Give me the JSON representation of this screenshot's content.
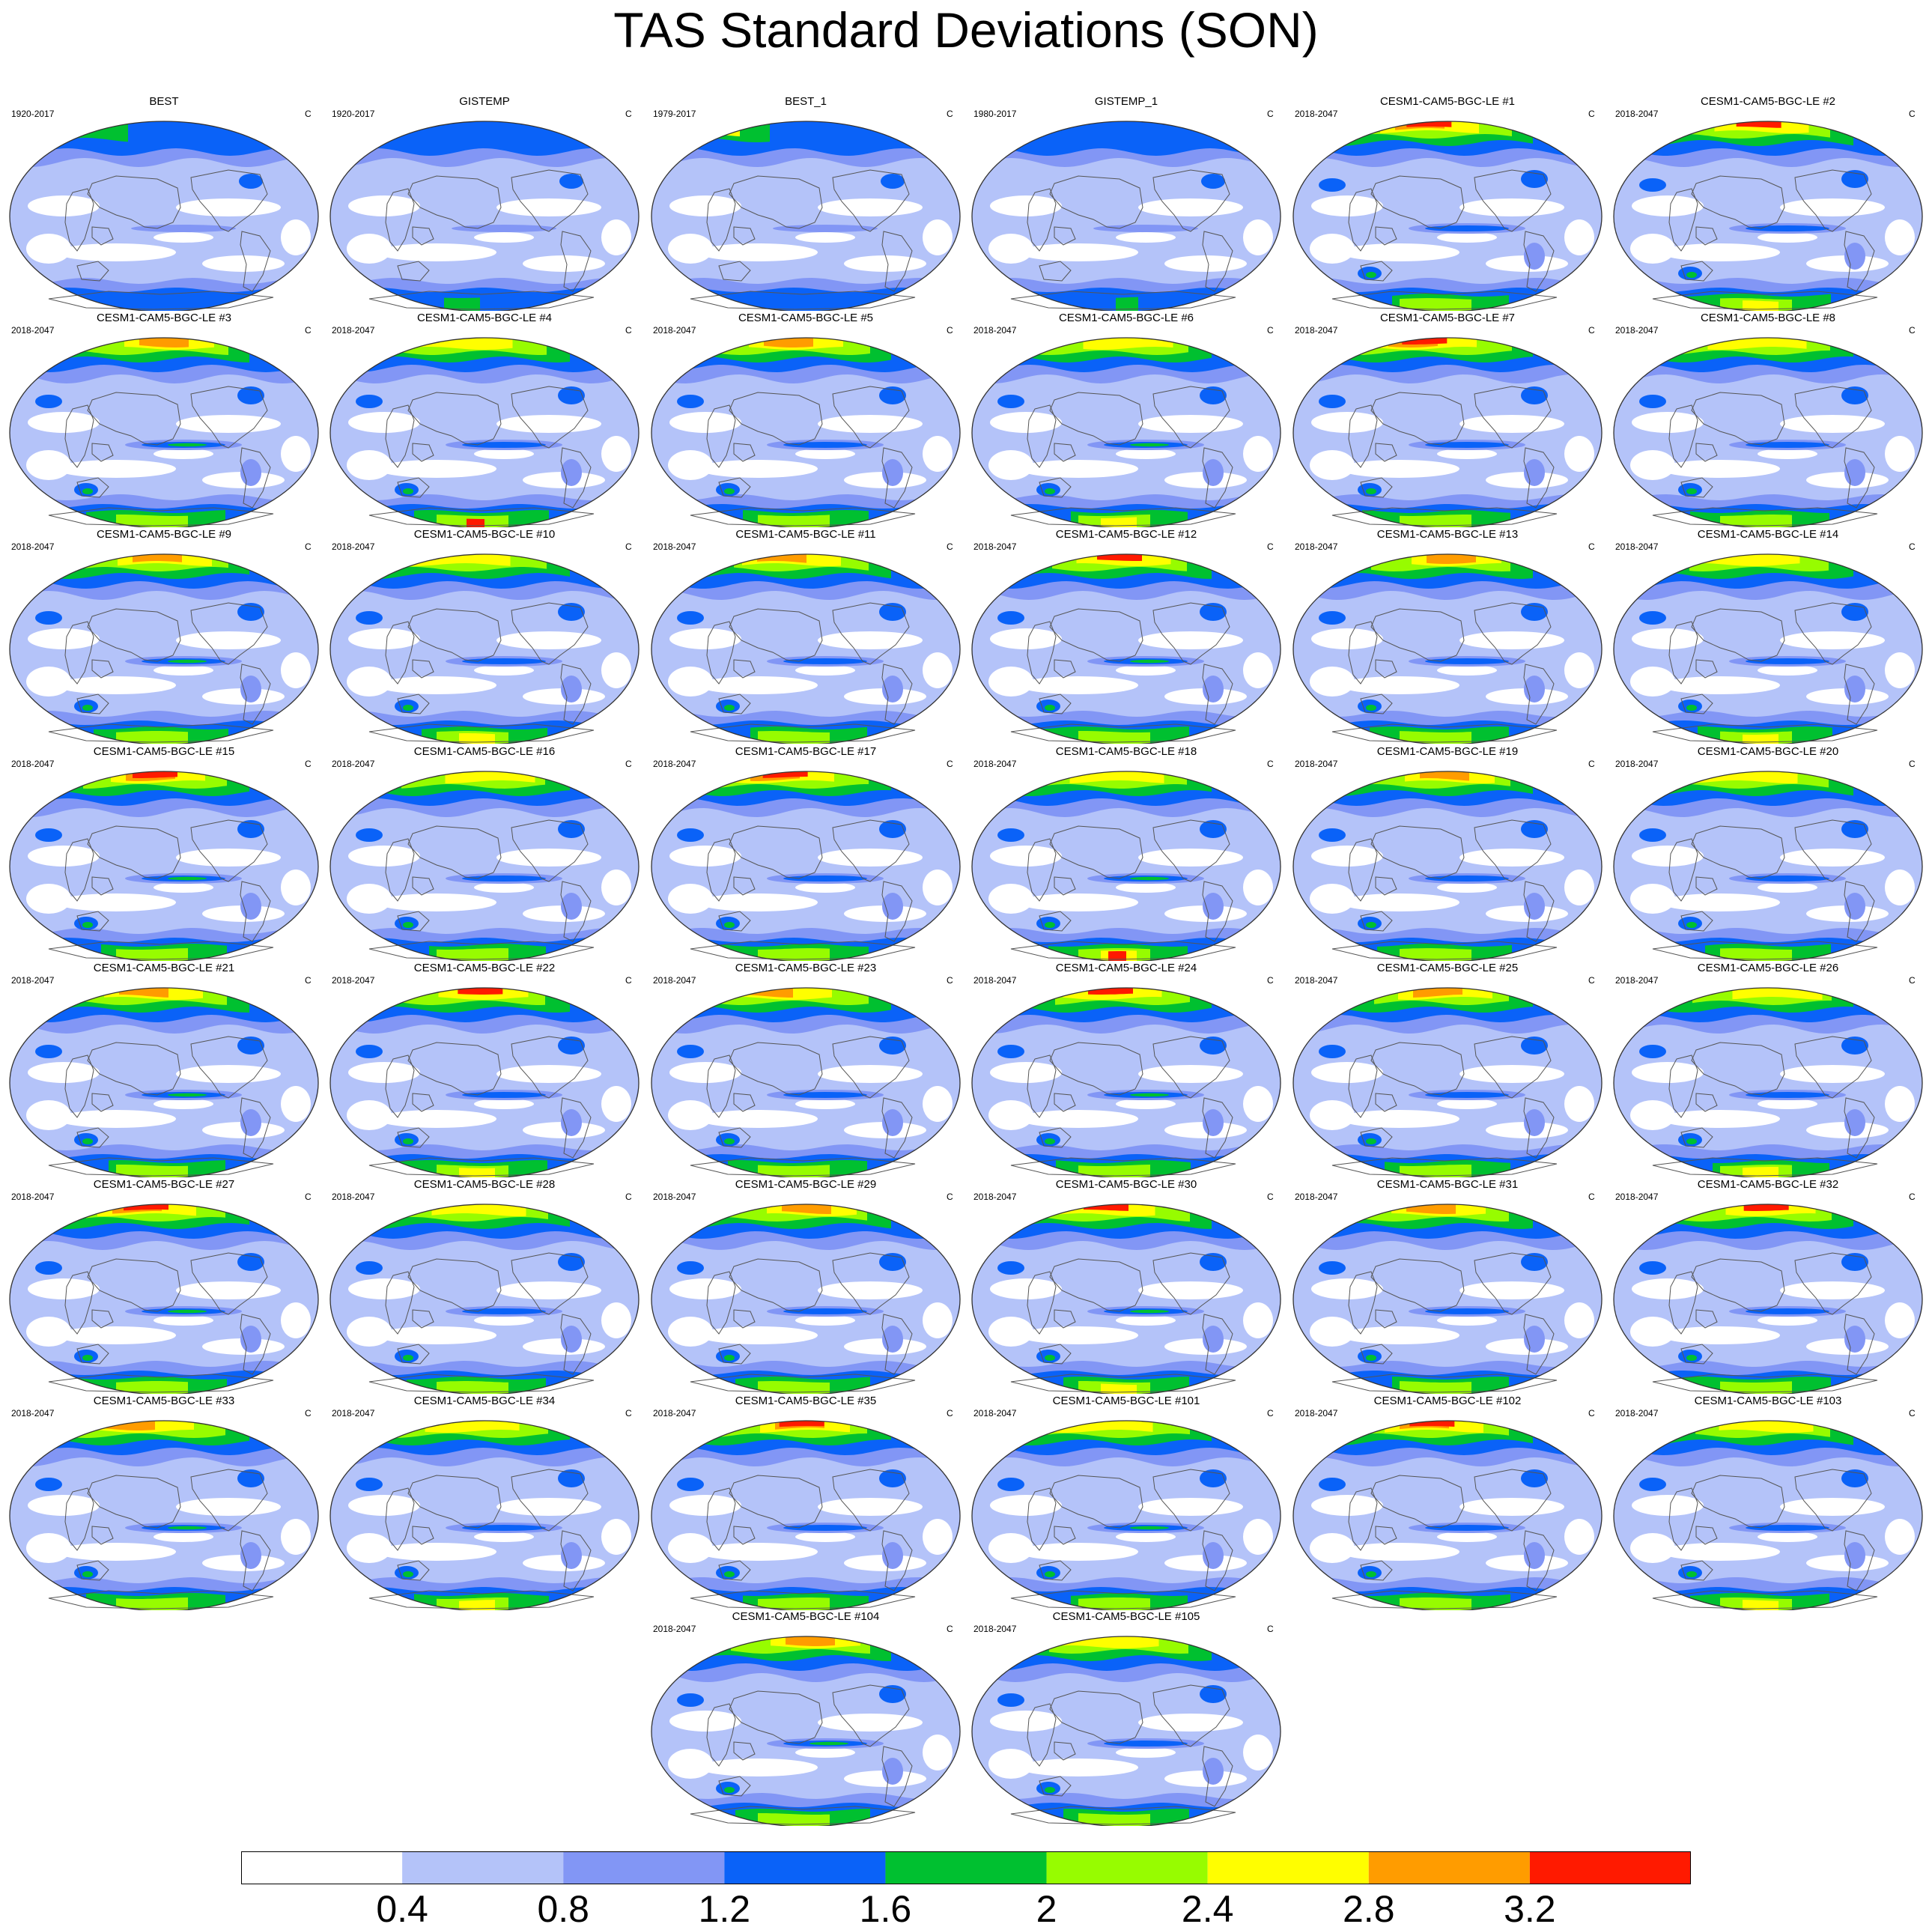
{
  "title": "TAS Standard Deviations (SON)",
  "units": "C",
  "colorbar": {
    "labels": [
      "0.4",
      "0.8",
      "1.2",
      "1.6",
      "2",
      "2.4",
      "2.8",
      "3.2"
    ],
    "colors": [
      "#ffffff",
      "#b4c3f9",
      "#8296f5",
      "#0a62f8",
      "#00c030",
      "#97fc00",
      "#fffe00",
      "#ff9c00",
      "#ff1a00"
    ]
  },
  "panels": [
    {
      "title": "BEST",
      "years": "1920-2017"
    },
    {
      "title": "GISTEMP",
      "years": "1920-2017"
    },
    {
      "title": "BEST_1",
      "years": "1979-2017"
    },
    {
      "title": "GISTEMP_1",
      "years": "1980-2017"
    },
    {
      "title": "CESM1-CAM5-BGC-LE #1",
      "years": "2018-2047"
    },
    {
      "title": "CESM1-CAM5-BGC-LE #2",
      "years": "2018-2047"
    },
    {
      "title": "CESM1-CAM5-BGC-LE #3",
      "years": "2018-2047"
    },
    {
      "title": "CESM1-CAM5-BGC-LE #4",
      "years": "2018-2047"
    },
    {
      "title": "CESM1-CAM5-BGC-LE #5",
      "years": "2018-2047"
    },
    {
      "title": "CESM1-CAM5-BGC-LE #6",
      "years": "2018-2047"
    },
    {
      "title": "CESM1-CAM5-BGC-LE #7",
      "years": "2018-2047"
    },
    {
      "title": "CESM1-CAM5-BGC-LE #8",
      "years": "2018-2047"
    },
    {
      "title": "CESM1-CAM5-BGC-LE #9",
      "years": "2018-2047"
    },
    {
      "title": "CESM1-CAM5-BGC-LE #10",
      "years": "2018-2047"
    },
    {
      "title": "CESM1-CAM5-BGC-LE #11",
      "years": "2018-2047"
    },
    {
      "title": "CESM1-CAM5-BGC-LE #12",
      "years": "2018-2047"
    },
    {
      "title": "CESM1-CAM5-BGC-LE #13",
      "years": "2018-2047"
    },
    {
      "title": "CESM1-CAM5-BGC-LE #14",
      "years": "2018-2047"
    },
    {
      "title": "CESM1-CAM5-BGC-LE #15",
      "years": "2018-2047"
    },
    {
      "title": "CESM1-CAM5-BGC-LE #16",
      "years": "2018-2047"
    },
    {
      "title": "CESM1-CAM5-BGC-LE #17",
      "years": "2018-2047"
    },
    {
      "title": "CESM1-CAM5-BGC-LE #18",
      "years": "2018-2047"
    },
    {
      "title": "CESM1-CAM5-BGC-LE #19",
      "years": "2018-2047"
    },
    {
      "title": "CESM1-CAM5-BGC-LE #20",
      "years": "2018-2047"
    },
    {
      "title": "CESM1-CAM5-BGC-LE #21",
      "years": "2018-2047"
    },
    {
      "title": "CESM1-CAM5-BGC-LE #22",
      "years": "2018-2047"
    },
    {
      "title": "CESM1-CAM5-BGC-LE #23",
      "years": "2018-2047"
    },
    {
      "title": "CESM1-CAM5-BGC-LE #24",
      "years": "2018-2047"
    },
    {
      "title": "CESM1-CAM5-BGC-LE #25",
      "years": "2018-2047"
    },
    {
      "title": "CESM1-CAM5-BGC-LE #26",
      "years": "2018-2047"
    },
    {
      "title": "CESM1-CAM5-BGC-LE #27",
      "years": "2018-2047"
    },
    {
      "title": "CESM1-CAM5-BGC-LE #28",
      "years": "2018-2047"
    },
    {
      "title": "CESM1-CAM5-BGC-LE #29",
      "years": "2018-2047"
    },
    {
      "title": "CESM1-CAM5-BGC-LE #30",
      "years": "2018-2047"
    },
    {
      "title": "CESM1-CAM5-BGC-LE #31",
      "years": "2018-2047"
    },
    {
      "title": "CESM1-CAM5-BGC-LE #32",
      "years": "2018-2047"
    },
    {
      "title": "CESM1-CAM5-BGC-LE #33",
      "years": "2018-2047"
    },
    {
      "title": "CESM1-CAM5-BGC-LE #34",
      "years": "2018-2047"
    },
    {
      "title": "CESM1-CAM5-BGC-LE #35",
      "years": "2018-2047"
    },
    {
      "title": "CESM1-CAM5-BGC-LE #101",
      "years": "2018-2047"
    },
    {
      "title": "CESM1-CAM5-BGC-LE #102",
      "years": "2018-2047"
    },
    {
      "title": "CESM1-CAM5-BGC-LE #103",
      "years": "2018-2047"
    },
    {
      "title": "CESM1-CAM5-BGC-LE #104",
      "years": "2018-2047"
    },
    {
      "title": "CESM1-CAM5-BGC-LE #105",
      "years": "2018-2047"
    }
  ]
}
